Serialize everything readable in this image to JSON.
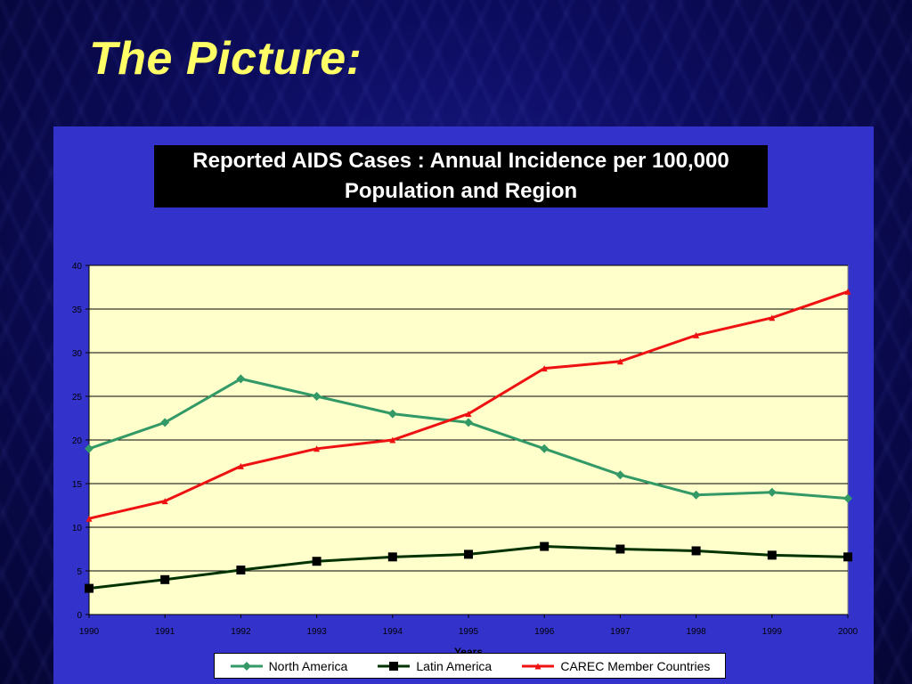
{
  "slide": {
    "title": "The Picture:"
  },
  "chart_data": {
    "type": "line",
    "title": "Reported AIDS Cases : Annual Incidence per 100,000 Population and Region",
    "title_lines": [
      "Reported AIDS Cases : Annual Incidence per 100,000",
      "Population and Region"
    ],
    "xlabel": "Years",
    "ylabel": "",
    "categories": [
      "1990",
      "1991",
      "1992",
      "1993",
      "1994",
      "1995",
      "1996",
      "1997",
      "1998",
      "1999",
      "2000"
    ],
    "ylim": [
      0,
      40
    ],
    "yticks": [
      0,
      5,
      10,
      15,
      20,
      25,
      30,
      35,
      40
    ],
    "grid": true,
    "legend_position": "bottom",
    "series": [
      {
        "name": "North America",
        "color": "#339966",
        "marker": "diamond",
        "values": [
          19,
          22,
          27,
          25,
          23,
          22,
          19,
          16,
          13.7,
          14,
          13.3
        ]
      },
      {
        "name": "Latin America",
        "color": "#003300",
        "marker": "square",
        "values": [
          3,
          4,
          5.1,
          6.1,
          6.6,
          6.9,
          7.8,
          7.5,
          7.3,
          6.8,
          6.6
        ]
      },
      {
        "name": "CAREC Member Countries",
        "color": "#ee1111",
        "marker": "triangle",
        "values": [
          11,
          13,
          17,
          19,
          20,
          23,
          28.2,
          29,
          32,
          34,
          37
        ]
      }
    ]
  }
}
